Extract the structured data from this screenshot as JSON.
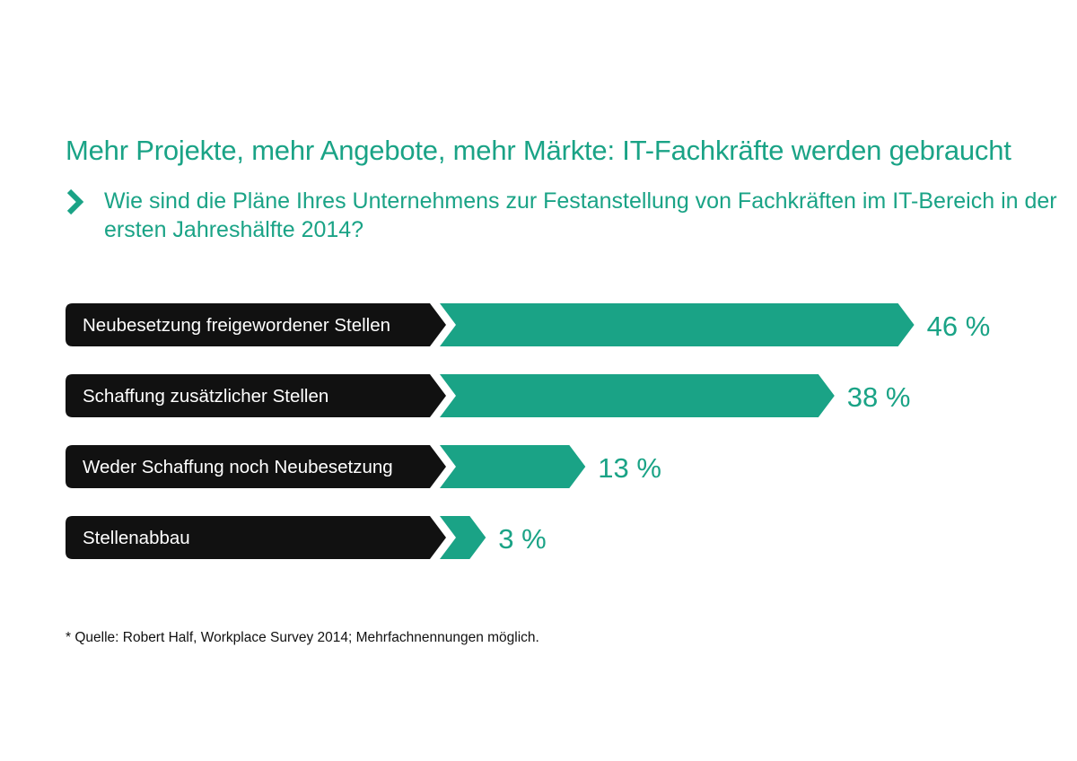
{
  "headline": "Mehr Projekte, mehr Angebote, mehr Märkte: IT-Fachkräfte werden gebraucht",
  "question": "Wie sind die Pläne Ihres Unternehmens zur Festanstellung von Fachkräften im IT-Bereich in der ersten Jahreshälfte 2014?",
  "question_icon": "chevron-right-icon",
  "footnote": "* Quelle: Robert Half, Workplace Survey 2014; Mehrfachnennungen möglich.",
  "colors": {
    "accent": "#1aa386",
    "label_bg": "#111111",
    "label_text": "#ffffff",
    "text": "#111111"
  },
  "chart_data": {
    "type": "bar",
    "orientation": "horizontal",
    "title": "Mehr Projekte, mehr Angebote, mehr Märkte: IT-Fachkräfte werden gebraucht",
    "subtitle": "Wie sind die Pläne Ihres Unternehmens zur Festanstellung von Fachkräften im IT-Bereich in der ersten Jahreshälfte 2014?",
    "categories": [
      "Neubesetzung freigewordener Stellen",
      "Schaffung zusätzlicher Stellen",
      "Weder Schaffung noch Neubesetzung",
      "Stellenabbau"
    ],
    "values": [
      46,
      38,
      13,
      3
    ],
    "value_labels": [
      "46 %",
      "38 %",
      "13 %",
      "3 %"
    ],
    "unit": "%",
    "grid": false,
    "legend": "none"
  }
}
